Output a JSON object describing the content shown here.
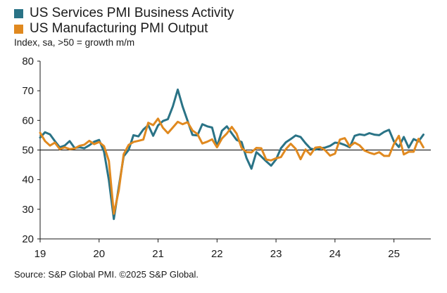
{
  "chart_data": {
    "type": "line",
    "subtitle": "Index, sa, >50 = growth m/m",
    "source": "Source: S&P Global PMI. ©2025 S&P Global.",
    "colors": {
      "services": "#2a7386",
      "manufacturing": "#e0891f",
      "axis": "#1a1a1a",
      "reference": "#000000"
    },
    "ylim": [
      20,
      80
    ],
    "y_ticks": [
      "20",
      "30",
      "40",
      "50",
      "60",
      "70",
      "80"
    ],
    "x_ticks": [
      "19",
      "20",
      "21",
      "22",
      "23",
      "24",
      "25"
    ],
    "x_start": "2019-01",
    "reference_line": 50,
    "legend_position": "top-left",
    "series": [
      {
        "name": "US Services PMI Business Activity",
        "color": "#2a7386",
        "values": [
          54.2,
          56.0,
          55.3,
          53.0,
          50.9,
          51.5,
          53.0,
          50.7,
          50.9,
          50.6,
          51.6,
          52.8,
          53.4,
          49.4,
          39.8,
          26.7,
          37.5,
          47.9,
          50.0,
          55.0,
          54.6,
          56.9,
          58.4,
          54.8,
          58.3,
          59.8,
          60.4,
          64.7,
          70.4,
          64.6,
          59.9,
          55.1,
          54.9,
          58.7,
          58.0,
          57.6,
          51.2,
          56.5,
          58.0,
          55.6,
          53.4,
          52.7,
          47.3,
          43.7,
          49.3,
          47.8,
          46.2,
          44.7,
          46.8,
          50.6,
          52.6,
          53.7,
          54.9,
          54.4,
          52.3,
          50.5,
          50.1,
          50.6,
          50.8,
          51.4,
          52.5,
          52.3,
          51.7,
          50.9,
          54.8,
          55.3,
          55.0,
          55.7,
          55.2,
          55.0,
          56.1,
          56.8,
          52.9,
          51.0,
          54.4,
          50.8,
          53.7,
          52.9,
          55.2
        ]
      },
      {
        "name": "US Manufacturing PMI Output",
        "color": "#e0891f",
        "values": [
          55.8,
          53.0,
          51.5,
          52.5,
          50.3,
          50.9,
          50.3,
          50.5,
          51.4,
          51.8,
          53.1,
          52.0,
          52.7,
          51.3,
          46.3,
          28.5,
          36.3,
          48.6,
          51.7,
          52.7,
          53.1,
          53.5,
          59.2,
          58.4,
          60.6,
          57.5,
          55.7,
          57.6,
          59.5,
          58.7,
          59.4,
          56.6,
          55.4,
          52.2,
          52.8,
          53.6,
          50.9,
          53.9,
          55.6,
          57.8,
          55.5,
          50.7,
          49.3,
          49.2,
          50.7,
          50.6,
          46.8,
          46.5,
          47.2,
          47.6,
          50.3,
          52.1,
          50.4,
          46.9,
          50.2,
          48.4,
          50.8,
          51.0,
          49.9,
          48.1,
          48.8,
          53.5,
          54.0,
          51.2,
          52.5,
          51.6,
          49.8,
          49.1,
          48.6,
          49.3,
          48.0,
          48.0,
          52.0,
          54.8,
          48.5,
          49.4,
          49.4,
          53.8,
          50.9
        ]
      }
    ]
  }
}
